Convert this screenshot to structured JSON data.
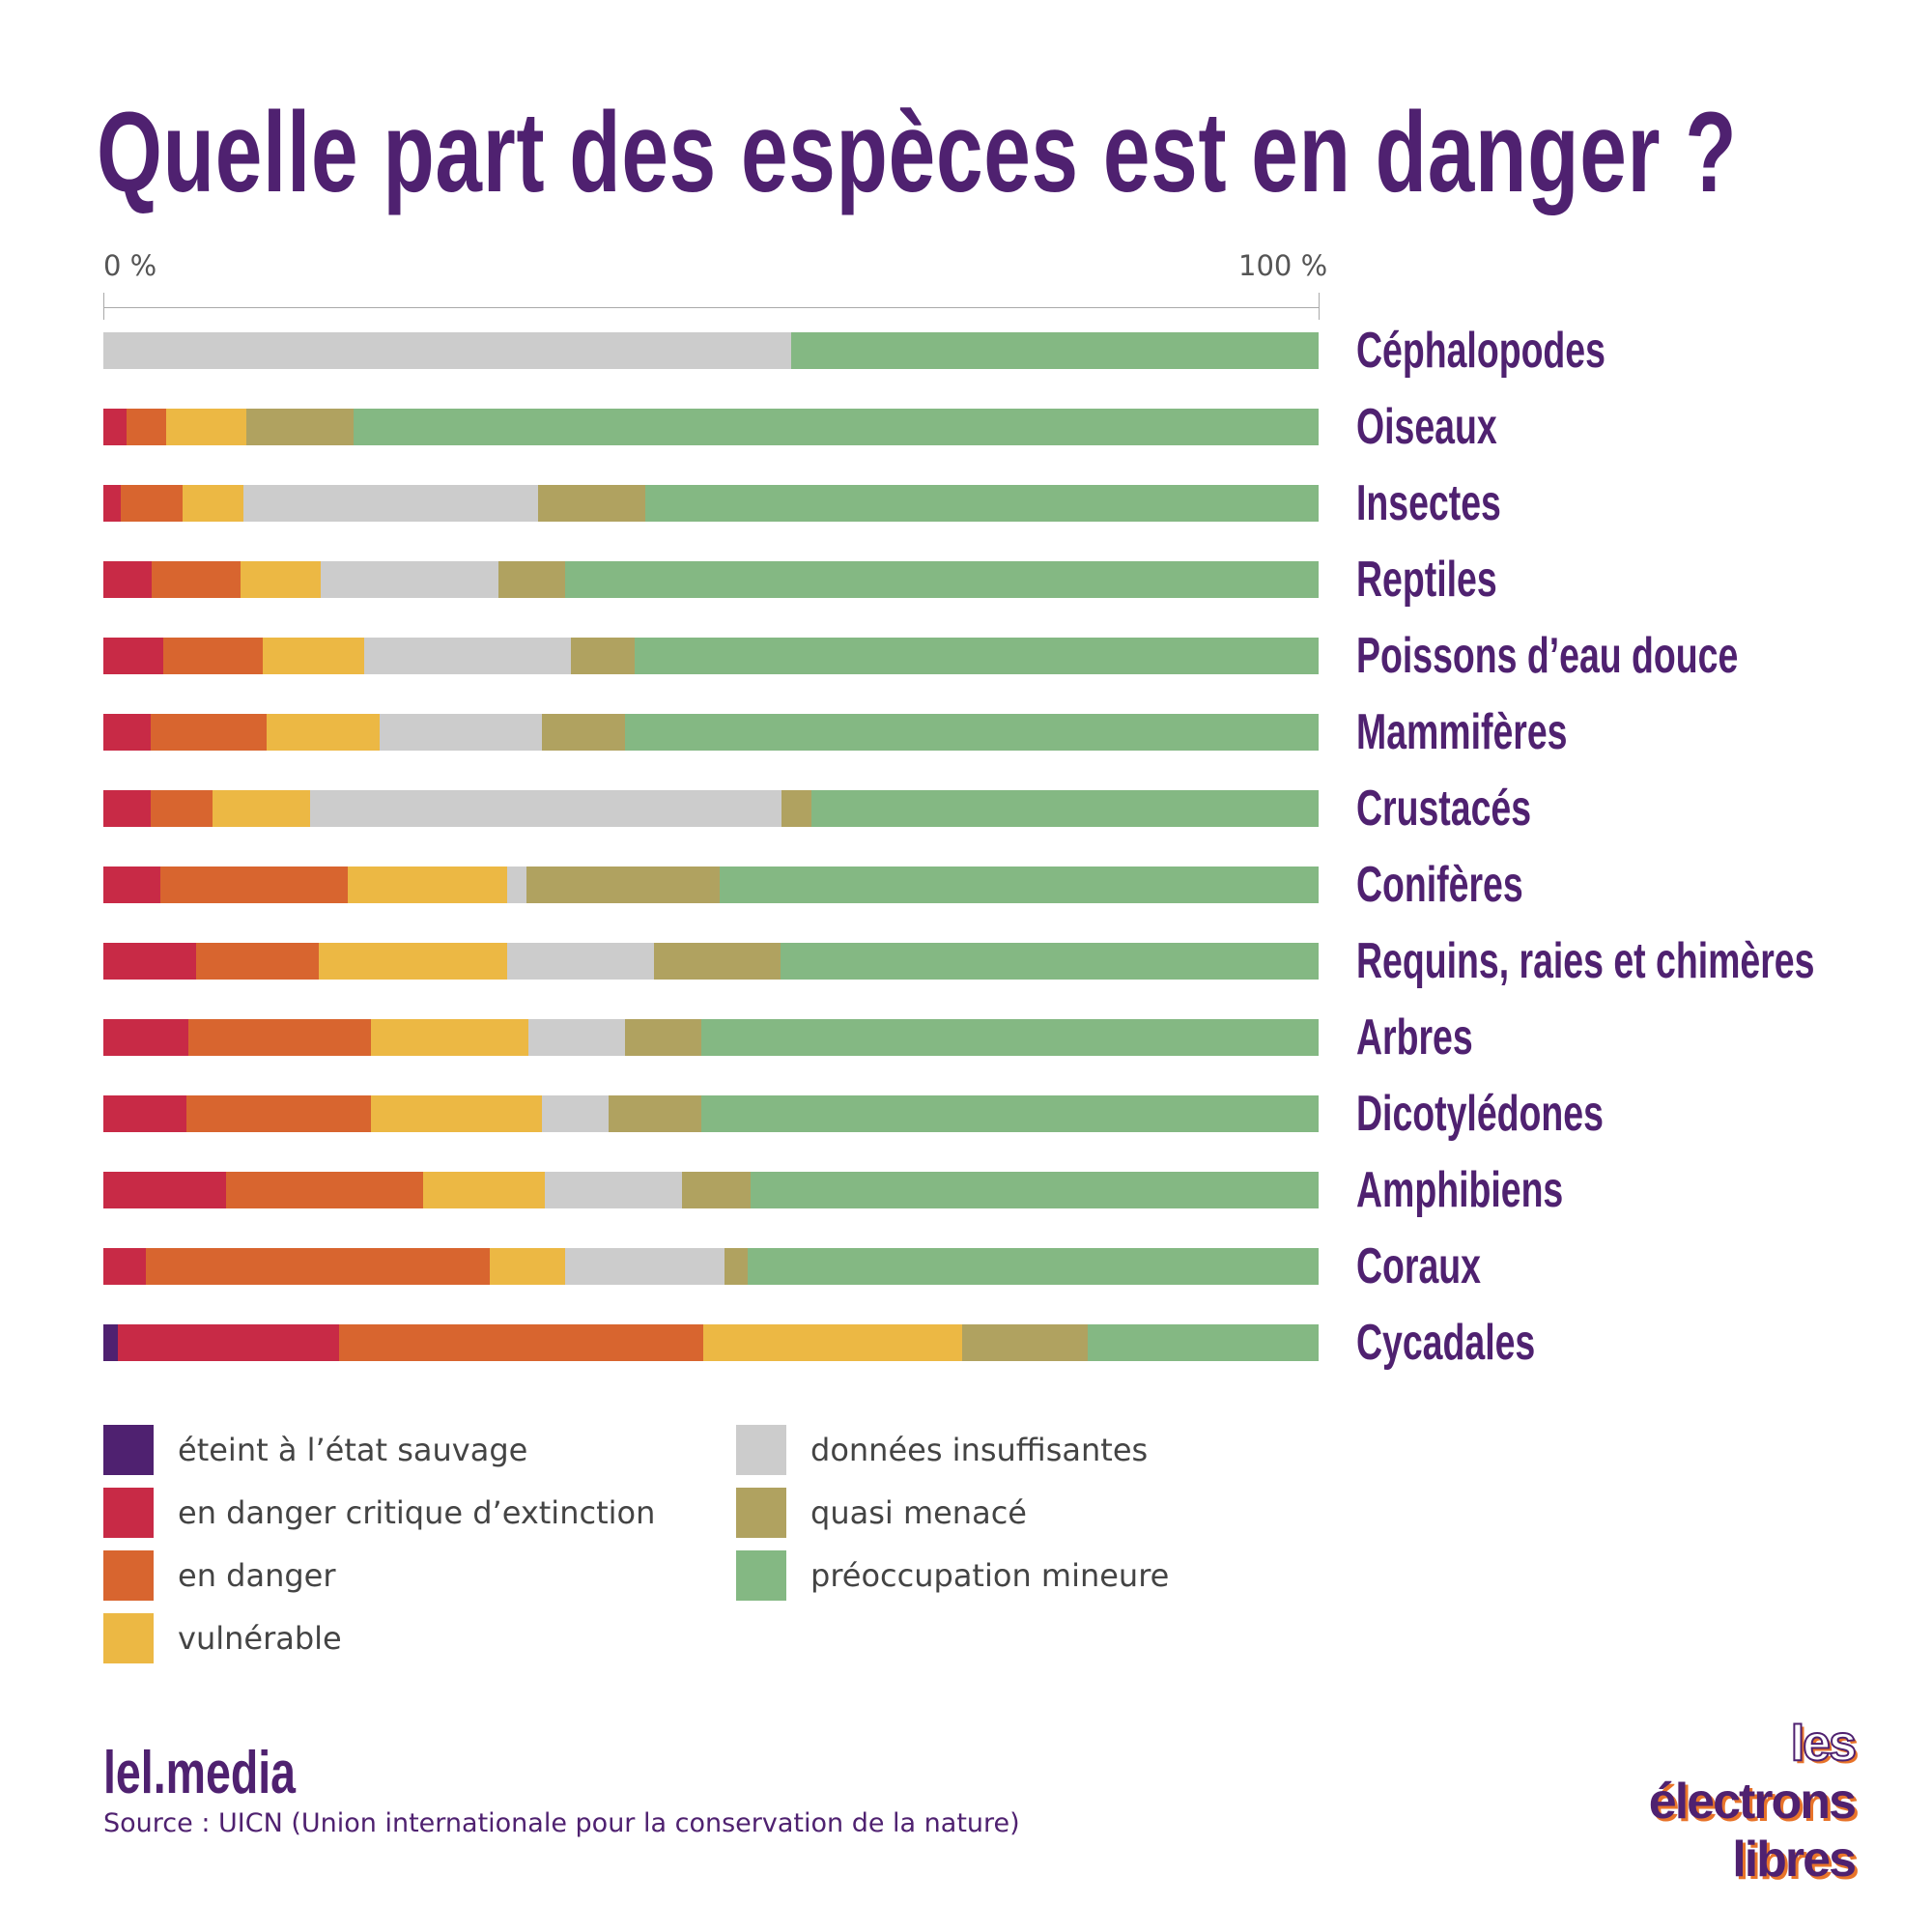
{
  "chart_data": {
    "type": "bar",
    "orientation": "horizontal-stacked-100",
    "title": "Quelle part des espèces est en danger ?",
    "axis": {
      "min_label": "0 %",
      "max_label": "100 %",
      "range": [
        0,
        100
      ]
    },
    "series_keys": [
      "ew",
      "cr",
      "en",
      "vu",
      "dd",
      "nt",
      "lc"
    ],
    "legend": [
      {
        "key": "ew",
        "label": "éteint à l’état sauvage",
        "color": "#4f2170"
      },
      {
        "key": "cr",
        "label": "en danger critique d’extinction",
        "color": "#c82a46"
      },
      {
        "key": "en",
        "label": "en danger",
        "color": "#d8652f"
      },
      {
        "key": "vu",
        "label": "vulnérable",
        "color": "#ecb844"
      },
      {
        "key": "dd",
        "label": "données insuffisantes",
        "color": "#cccccc"
      },
      {
        "key": "nt",
        "label": "quasi menacé",
        "color": "#b0a260"
      },
      {
        "key": "lc",
        "label": "préoccupation mineure",
        "color": "#84b883"
      }
    ],
    "categories": [
      "Céphalopodes",
      "Oiseaux",
      "Insectes",
      "Reptiles",
      "Poissons d’eau douce",
      "Mammifères",
      "Crustacés",
      "Conifères",
      "Requins, raies et chimères",
      "Arbres",
      "Dicotylédones",
      "Amphibiens",
      "Coraux",
      "Cycadales"
    ],
    "values": [
      [
        0,
        0,
        0,
        0,
        56.6,
        0,
        43.4
      ],
      [
        0,
        1.9,
        3.3,
        6.6,
        0,
        8.8,
        79.4
      ],
      [
        0,
        1.4,
        5.1,
        5.0,
        24.3,
        8.8,
        55.4
      ],
      [
        0,
        4.0,
        7.3,
        6.6,
        14.6,
        5.5,
        62.0
      ],
      [
        0,
        4.9,
        8.2,
        8.4,
        17.0,
        5.2,
        56.3
      ],
      [
        0,
        3.9,
        9.5,
        9.3,
        13.4,
        6.8,
        57.1
      ],
      [
        0,
        3.9,
        5.1,
        8.0,
        38.8,
        2.5,
        41.7
      ],
      [
        0,
        4.7,
        15.4,
        13.1,
        1.6,
        15.9,
        49.3
      ],
      [
        0,
        7.6,
        10.1,
        15.5,
        12.1,
        10.4,
        44.3
      ],
      [
        0,
        7.0,
        15.0,
        13.0,
        7.9,
        6.3,
        50.8
      ],
      [
        0,
        6.8,
        15.2,
        14.1,
        5.5,
        7.6,
        50.8
      ],
      [
        0,
        10.1,
        16.2,
        10.0,
        11.3,
        5.7,
        46.7
      ],
      [
        0,
        3.5,
        28.3,
        6.2,
        13.1,
        1.9,
        47.0
      ],
      [
        1.2,
        18.2,
        30.0,
        21.3,
        0,
        10.3,
        19.0
      ]
    ]
  },
  "footer": {
    "site": "lel.media",
    "source": "Source : UICN (Union internationale pour la conservation de la nature)",
    "logo_text": "les électrons libres"
  }
}
